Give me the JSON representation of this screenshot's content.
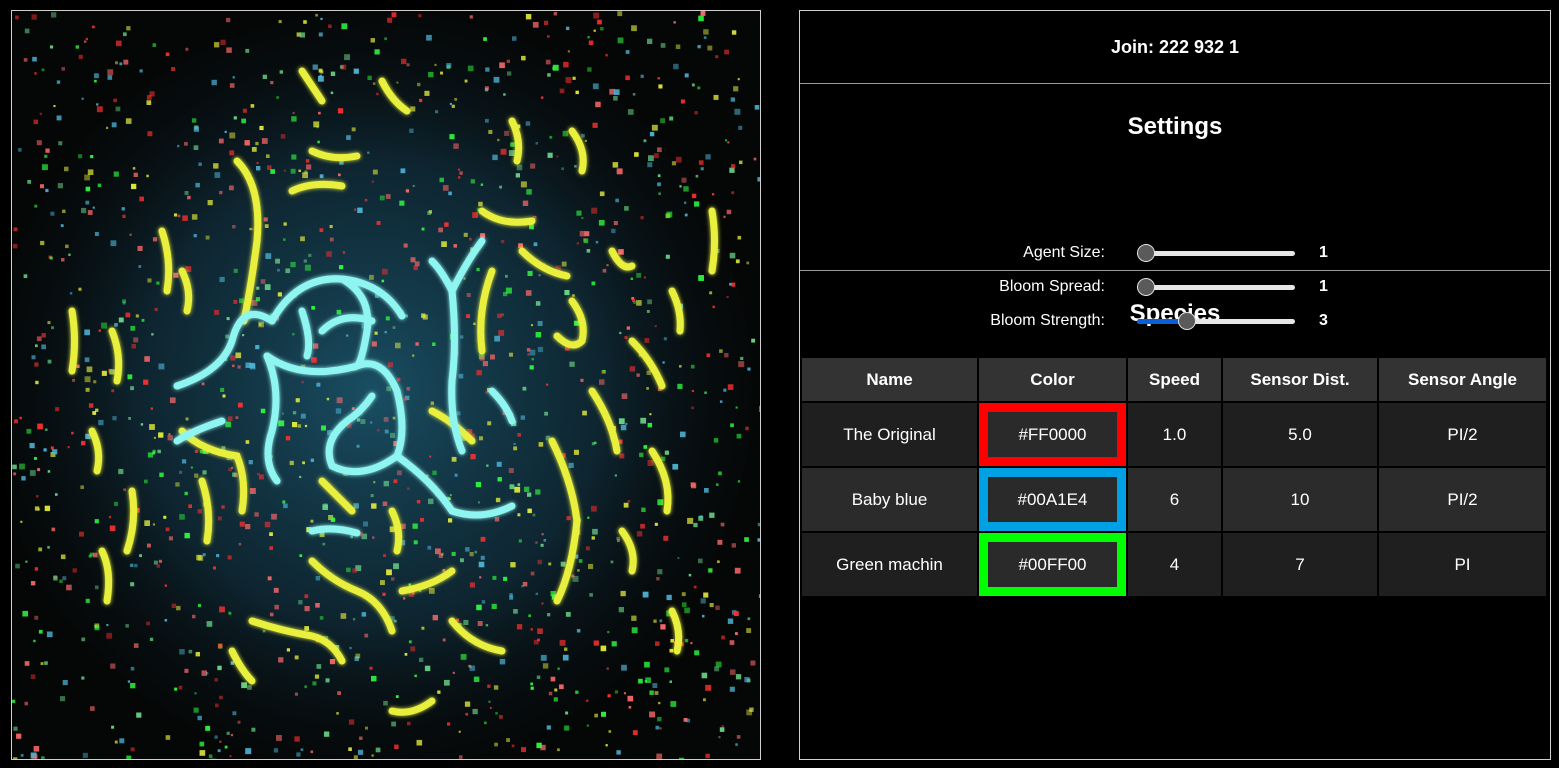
{
  "join_text": "Join: 222 932 1",
  "settings": {
    "title": "Settings",
    "rows": [
      {
        "label": "Agent Size:",
        "value": "1",
        "fraction": 0.0
      },
      {
        "label": "Bloom Spread:",
        "value": "1",
        "fraction": 0.0
      },
      {
        "label": "Bloom Strength:",
        "value": "3",
        "fraction": 0.29
      }
    ]
  },
  "species": {
    "title": "Species",
    "headers": [
      "Name",
      "Color",
      "Speed",
      "Sensor Dist.",
      "Sensor Angle"
    ],
    "rows": [
      {
        "name": "The Original",
        "color": "#FF0000",
        "speed": "1.0",
        "sensor_dist": "5.0",
        "sensor_angle": "PI/2"
      },
      {
        "name": "Baby blue",
        "color": "#00A1E4",
        "speed": "6",
        "sensor_dist": "10",
        "sensor_angle": "PI/2"
      },
      {
        "name": "Green machin",
        "color": "#00FF00",
        "speed": "4",
        "sensor_dist": "7",
        "sensor_angle": "PI"
      }
    ]
  },
  "colors": {
    "panel_bg": "#000000",
    "slider_fill": "#0A5FD8",
    "trail_cyan": "#8FF5F0",
    "trail_yellow": "#E8F03C"
  }
}
